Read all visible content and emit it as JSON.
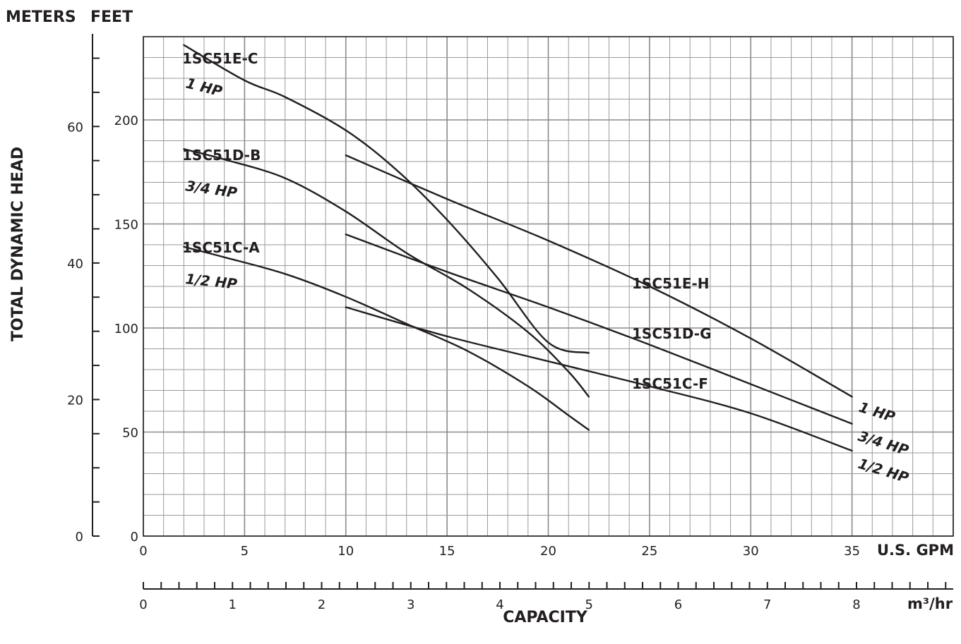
{
  "chart_data": {
    "type": "line",
    "title": "",
    "header_left": "METERS",
    "header_right": "FEET",
    "ylabel": "TOTAL DYNAMIC HEAD",
    "xlabel": "CAPACITY",
    "x_unit_primary": "U.S. GPM",
    "x_unit_secondary": "m³/hr",
    "xlim": [
      0,
      40
    ],
    "ylim_feet": [
      0,
      240
    ],
    "ylim_meters": [
      0,
      73.152
    ],
    "x_ticks": [
      "0",
      "5",
      "10",
      "15",
      "20",
      "25",
      "30",
      "35"
    ],
    "x2_ticks": [
      "0",
      "1",
      "2",
      "3",
      "4",
      "5",
      "6",
      "7",
      "8"
    ],
    "y_ticks_feet": [
      "0",
      "50",
      "100",
      "150",
      "200"
    ],
    "y_ticks_meters": [
      "0",
      "20",
      "40",
      "60"
    ],
    "grid": true,
    "series": [
      {
        "name": "1SC51E-C",
        "power": "1 HP",
        "color": "#231f20",
        "x": [
          2,
          5,
          7,
          10,
          12.5,
          15,
          17.5,
          20,
          22
        ],
        "y": [
          236,
          219,
          211,
          195,
          176,
          152,
          124,
          93,
          88
        ]
      },
      {
        "name": "1SC51D-B",
        "power": "3/4 HP",
        "color": "#231f20",
        "x": [
          2,
          4,
          7,
          10,
          13,
          16,
          19,
          21,
          22
        ],
        "y": [
          186,
          181,
          172,
          156,
          136,
          119,
          98,
          79,
          67
        ]
      },
      {
        "name": "1SC51C-A",
        "power": "1/2 HP",
        "color": "#231f20",
        "x": [
          2,
          4,
          7,
          10,
          13,
          16,
          19,
          21,
          22
        ],
        "y": [
          139,
          134,
          126,
          115,
          102,
          89,
          72,
          58,
          51
        ]
      },
      {
        "name": "1SC51E-H",
        "power": "1 HP",
        "color": "#231f20",
        "x": [
          10,
          15,
          20,
          25,
          30,
          35
        ],
        "y": [
          183,
          162,
          142,
          120,
          95,
          67
        ]
      },
      {
        "name": "1SC51D-G",
        "power": "3/4 HP",
        "color": "#231f20",
        "x": [
          10,
          15,
          20,
          25,
          30,
          35
        ],
        "y": [
          145,
          127,
          110,
          92,
          73,
          54
        ]
      },
      {
        "name": "1SC51C-F",
        "power": "1/2 HP",
        "color": "#231f20",
        "x": [
          10,
          15,
          20,
          25,
          30,
          35
        ],
        "y": [
          110,
          96,
          84,
          72,
          59,
          41
        ]
      }
    ],
    "labels": {
      "1SC51E-C": "1SC51E-C",
      "1SC51D-B": "1SC51D-B",
      "1SC51C-A": "1SC51C-A",
      "1SC51E-H": "1SC51E-H",
      "1SC51D-G": "1SC51D-G",
      "1SC51C-F": "1SC51C-F",
      "hp_1": "1 HP",
      "hp_34": "3/4 HP",
      "hp_12": "1/2 HP"
    }
  }
}
